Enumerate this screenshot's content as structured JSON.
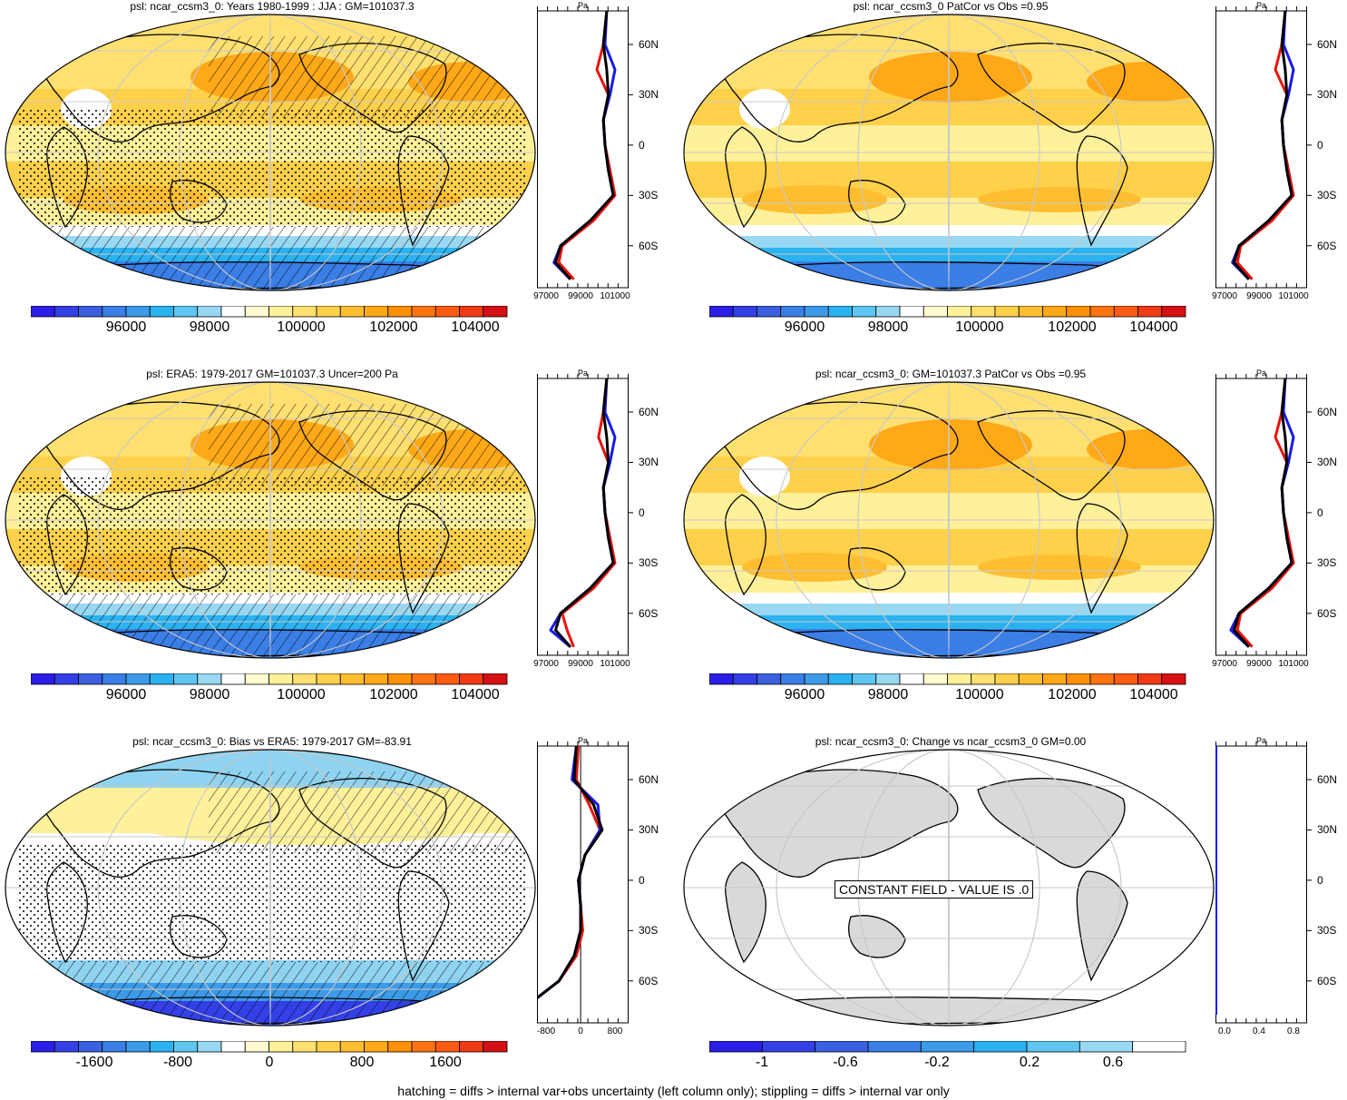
{
  "colors": {
    "scale_main": [
      "#2b1ee6",
      "#3340e6",
      "#3a60e0",
      "#3a7ee6",
      "#3c9ae8",
      "#2bb2f0",
      "#5ec6f0",
      "#98d8f2",
      "#ffffff",
      "#fffbd0",
      "#fff09a",
      "#ffe070",
      "#ffd04a",
      "#ffbe30",
      "#ffa818",
      "#ff9008",
      "#ff7410",
      "#ff5a14",
      "#f03a16",
      "#d61014"
    ],
    "scale_change": [
      "#2b1ee6",
      "#3340e6",
      "#3a60e0",
      "#3a7ee6",
      "#3c9ae8",
      "#2bb2f0",
      "#5ec6f0",
      "#98d8f2",
      "#ffffff"
    ],
    "model_line": "#e8140c",
    "obs_line": "#1a1ae6",
    "ref_line": "#000000",
    "land": "#d9d9d9",
    "ocean_field": "#ffd84a"
  },
  "panels": [
    {
      "title": "psl: ncar_ccsm3_0: Years 1980-1999 : JJA : GM=101037.3",
      "colorbar_labels": [
        "96000",
        "98000",
        "100000",
        "102000",
        "104000"
      ],
      "profile_unit": "Pa",
      "profile_xticks": [
        "97000",
        "99000",
        "101000"
      ],
      "lat_ticks": [
        "60N",
        "30N",
        "0",
        "30S",
        "60S"
      ]
    },
    {
      "title": "psl: ncar_ccsm3_0 PatCor vs Obs =0.95",
      "colorbar_labels": [
        "96000",
        "98000",
        "100000",
        "102000",
        "104000"
      ],
      "profile_unit": "Pa",
      "profile_xticks": [
        "97000",
        "99000",
        "101000"
      ],
      "lat_ticks": [
        "60N",
        "30N",
        "0",
        "30S",
        "60S"
      ]
    },
    {
      "title": "psl: ERA5: 1979-2017 GM=101037.3 Uncer=200 Pa",
      "colorbar_labels": [
        "96000",
        "98000",
        "100000",
        "102000",
        "104000"
      ],
      "profile_unit": "Pa",
      "profile_xticks": [
        "97000",
        "99000",
        "101000"
      ],
      "lat_ticks": [
        "60N",
        "30N",
        "0",
        "30S",
        "60S"
      ]
    },
    {
      "title": "psl: ncar_ccsm3_0: GM=101037.3 PatCor vs Obs =0.95",
      "colorbar_labels": [
        "96000",
        "98000",
        "100000",
        "102000",
        "104000"
      ],
      "profile_unit": "Pa",
      "profile_xticks": [
        "97000",
        "99000",
        "101000"
      ],
      "lat_ticks": [
        "60N",
        "30N",
        "0",
        "30S",
        "60S"
      ]
    },
    {
      "title": "psl: ncar_ccsm3_0: Bias vs ERA5: 1979-2017 GM=-83.91",
      "colorbar_labels": [
        "-1600",
        "-800",
        "0",
        "800",
        "1600"
      ],
      "profile_unit": "Pa",
      "profile_xticks": [
        "-800",
        "0",
        "800"
      ],
      "lat_ticks": [
        "60N",
        "30N",
        "0",
        "30S",
        "60S"
      ]
    },
    {
      "title": "psl: ncar_ccsm3_0: Change vs ncar_ccsm3_0 GM=0.00",
      "colorbar_labels": [
        "-1",
        "-0.6",
        "-0.2",
        "0.2",
        "0.6"
      ],
      "profile_unit": "Pa",
      "profile_xticks": [
        "0.0",
        "0.4",
        "0.8"
      ],
      "lat_ticks": [
        "60N",
        "30N",
        "0",
        "30S",
        "60S"
      ],
      "constant_field_label": "CONSTANT FIELD - VALUE IS .0"
    }
  ],
  "footer": "hatching = diffs > internal var+obs uncertainty (left column only); stippling = diffs > internal var only",
  "chart_data": [
    {
      "type": "heatmap",
      "title": "psl: ncar_ccsm3_0: Years 1980-1999 : JJA : GM=101037.3",
      "colorbar_range": [
        95000,
        105500
      ],
      "colorbar_ticks": [
        96000,
        98000,
        100000,
        102000,
        104000
      ],
      "zonal_profile": {
        "unit": "Pa",
        "xlim": [
          97000,
          102500
        ],
        "lat": [
          80,
          60,
          45,
          30,
          15,
          0,
          -15,
          -30,
          -45,
          -60,
          -70,
          -80
        ],
        "series": [
          {
            "color": "model",
            "values": [
              101200,
              101000,
              100600,
              101300,
              101000,
              101100,
              101400,
              101700,
              100400,
              98500,
              98300,
              99200
            ]
          },
          {
            "color": "obs",
            "values": [
              101200,
              101100,
              101700,
              101400,
              101000,
              101100,
              101300,
              101600,
              100200,
              98400,
              98000,
              99000
            ]
          },
          {
            "color": "ref",
            "values": [
              101200,
              101000,
              101200,
              101300,
              101000,
              101100,
              101300,
              101600,
              100200,
              98400,
              98100,
              99000
            ]
          }
        ]
      }
    },
    {
      "type": "heatmap",
      "title": "psl: ncar_ccsm3_0 PatCor vs Obs =0.95",
      "colorbar_range": [
        95000,
        105500
      ],
      "colorbar_ticks": [
        96000,
        98000,
        100000,
        102000,
        104000
      ],
      "zonal_profile": {
        "unit": "Pa",
        "xlim": [
          97000,
          102500
        ],
        "lat": [
          80,
          60,
          45,
          30,
          15,
          0,
          -15,
          -30,
          -45,
          -60,
          -70,
          -80
        ],
        "series": [
          {
            "color": "model",
            "values": [
              101200,
              101000,
              100600,
              101300,
              101000,
              101100,
              101400,
              101700,
              100400,
              98500,
              98300,
              99200
            ]
          },
          {
            "color": "obs",
            "values": [
              101200,
              101100,
              101700,
              101400,
              101000,
              101100,
              101300,
              101600,
              100200,
              98400,
              98000,
              99000
            ]
          },
          {
            "color": "ref",
            "values": [
              101200,
              101000,
              101200,
              101300,
              101000,
              101100,
              101300,
              101600,
              100200,
              98400,
              98100,
              99000
            ]
          }
        ]
      }
    },
    {
      "type": "heatmap",
      "title": "psl: ERA5: 1979-2017 GM=101037.3 Uncer=200 Pa",
      "colorbar_range": [
        95000,
        105500
      ],
      "colorbar_ticks": [
        96000,
        98000,
        100000,
        102000,
        104000
      ],
      "zonal_profile": {
        "unit": "Pa",
        "xlim": [
          97000,
          102500
        ],
        "lat": [
          80,
          60,
          45,
          30,
          15,
          0,
          -15,
          -30,
          -45,
          -60,
          -70,
          -80
        ],
        "series": [
          {
            "color": "model",
            "values": [
              101200,
              101000,
              100700,
              101300,
              101000,
              101100,
              101400,
              101700,
              100400,
              98500,
              98800,
              99200
            ]
          },
          {
            "color": "obs",
            "values": [
              101200,
              101100,
              101700,
              101400,
              101000,
              101100,
              101300,
              101600,
              100200,
              98400,
              97800,
              99000
            ]
          },
          {
            "color": "ref",
            "values": [
              101200,
              101000,
              101200,
              101300,
              101000,
              101100,
              101300,
              101600,
              100200,
              98400,
              98100,
              99000
            ]
          }
        ]
      }
    },
    {
      "type": "heatmap",
      "title": "psl: ncar_ccsm3_0: GM=101037.3 PatCor vs Obs =0.95",
      "colorbar_range": [
        95000,
        105500
      ],
      "colorbar_ticks": [
        96000,
        98000,
        100000,
        102000,
        104000
      ],
      "zonal_profile": {
        "unit": "Pa",
        "xlim": [
          97000,
          102500
        ],
        "lat": [
          80,
          60,
          45,
          30,
          15,
          0,
          -15,
          -30,
          -45,
          -60,
          -70,
          -80
        ],
        "series": [
          {
            "color": "model",
            "values": [
              101200,
              101000,
              100600,
              101300,
              101000,
              101100,
              101400,
              101700,
              100400,
              98500,
              98300,
              99200
            ]
          },
          {
            "color": "obs",
            "values": [
              101200,
              101100,
              101700,
              101400,
              101000,
              101100,
              101300,
              101600,
              100200,
              98400,
              97900,
              99000
            ]
          },
          {
            "color": "ref",
            "values": [
              101200,
              101000,
              101200,
              101300,
              101000,
              101100,
              101300,
              101600,
              100200,
              98400,
              98100,
              99000
            ]
          }
        ]
      }
    },
    {
      "type": "heatmap",
      "title": "psl: ncar_ccsm3_0: Bias vs ERA5: 1979-2017 GM=-83.91",
      "colorbar_range": [
        -2000,
        2000
      ],
      "colorbar_ticks": [
        -1600,
        -800,
        0,
        800,
        1600
      ],
      "zonal_profile": {
        "unit": "Pa",
        "xlim": [
          -1000,
          1100
        ],
        "lat": [
          80,
          60,
          45,
          30,
          15,
          0,
          -15,
          -30,
          -45,
          -60,
          -70
        ],
        "series": [
          {
            "color": "model",
            "values": [
              -50,
              -100,
              200,
              450,
              100,
              -50,
              0,
              50,
              -100,
              -500,
              -1000
            ]
          },
          {
            "color": "obs",
            "values": [
              -100,
              -200,
              400,
              450,
              100,
              -50,
              0,
              0,
              -150,
              -500,
              -1000
            ]
          },
          {
            "color": "ref",
            "values": [
              -100,
              -150,
              300,
              500,
              100,
              -50,
              0,
              0,
              -150,
              -500,
              -1000
            ]
          }
        ]
      }
    },
    {
      "type": "heatmap",
      "title": "psl: ncar_ccsm3_0: Change vs ncar_ccsm3_0 GM=0.00",
      "colorbar_range": [
        -1.2,
        1.0
      ],
      "colorbar_ticks": [
        -1,
        -0.6,
        -0.2,
        0.2,
        0.6
      ],
      "zonal_profile": {
        "unit": "Pa",
        "xlim": [
          0,
          1.0
        ],
        "lat": [
          80,
          60,
          30,
          0,
          -30,
          -60,
          -80
        ],
        "series": [
          {
            "color": "model",
            "values": [
              0,
              0,
              0,
              0,
              0,
              0,
              0
            ]
          },
          {
            "color": "obs",
            "values": [
              0,
              0,
              0,
              0,
              0,
              0,
              0
            ]
          }
        ]
      }
    }
  ]
}
